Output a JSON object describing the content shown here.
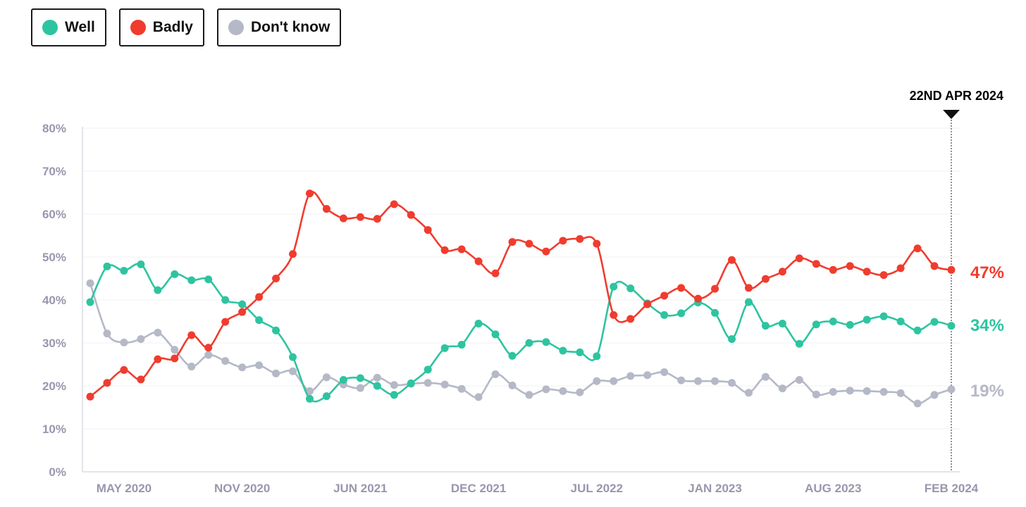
{
  "legend": [
    {
      "name": "Well",
      "color": "#2ec4a0"
    },
    {
      "name": "Badly",
      "color": "#f03c2e"
    },
    {
      "name": "Don't know",
      "color": "#b5b8c6"
    }
  ],
  "chart_data": {
    "type": "line",
    "title": "",
    "xlabel": "",
    "ylabel": "",
    "ylim": [
      0,
      80
    ],
    "y_ticks": [
      "0%",
      "10%",
      "20%",
      "30%",
      "40%",
      "50%",
      "60%",
      "70%",
      "80%"
    ],
    "x_tick_labels": [
      {
        "label": "MAY 2020",
        "index": 2
      },
      {
        "label": "NOV 2020",
        "index": 9
      },
      {
        "label": "JUN 2021",
        "index": 16
      },
      {
        "label": "DEC 2021",
        "index": 23
      },
      {
        "label": "JUL 2022",
        "index": 30
      },
      {
        "label": "JAN 2023",
        "index": 37
      },
      {
        "label": "AUG 2023",
        "index": 44
      },
      {
        "label": "FEB 2024",
        "index": 51
      }
    ],
    "marker": {
      "label": "22ND APR 2024",
      "index": 51
    },
    "end_labels": {
      "Well": "34%",
      "Badly": "47%",
      "Don't know": "19%"
    },
    "x_count": 52,
    "series": [
      {
        "name": "Well",
        "color": "#2ec4a0",
        "values": [
          39.5,
          47.8,
          46.8,
          48.3,
          42.3,
          46.0,
          44.6,
          44.8,
          40.0,
          39.0,
          35.3,
          32.9,
          26.7,
          17.0,
          17.6,
          21.4,
          21.8,
          20.0,
          17.9,
          20.6,
          23.8,
          28.8,
          29.6,
          34.5,
          32.0,
          27.0,
          30.0,
          30.2,
          28.2,
          27.8,
          26.9,
          43.1,
          42.7,
          39.2,
          36.5,
          36.9,
          39.4,
          37.0,
          30.9,
          39.5,
          34.0,
          34.5,
          29.8,
          34.3,
          35.0,
          34.2,
          35.4,
          36.2,
          35.0,
          32.9,
          34.9,
          34.0
        ]
      },
      {
        "name": "Badly",
        "color": "#f03c2e",
        "values": [
          17.5,
          20.7,
          23.7,
          21.5,
          26.2,
          26.4,
          31.8,
          28.9,
          34.9,
          37.2,
          40.7,
          45.0,
          50.7,
          64.8,
          61.2,
          59.0,
          59.3,
          58.9,
          62.3,
          59.8,
          56.3,
          51.6,
          51.8,
          49.0,
          46.2,
          53.5,
          53.1,
          51.3,
          53.8,
          54.2,
          53.1,
          36.5,
          35.6,
          39.0,
          41.0,
          42.8,
          40.3,
          42.6,
          49.3,
          42.8,
          44.9,
          46.6,
          49.7,
          48.4,
          47.0,
          47.9,
          46.6,
          45.8,
          47.4,
          52.0,
          47.9,
          47.0
        ]
      },
      {
        "name": "Don't know",
        "color": "#b5b8c6",
        "values": [
          43.9,
          32.2,
          30.1,
          30.9,
          32.4,
          28.4,
          24.5,
          27.2,
          25.8,
          24.3,
          24.8,
          22.9,
          23.4,
          18.8,
          22.0,
          20.3,
          19.5,
          21.9,
          20.2,
          20.5,
          20.7,
          20.3,
          19.3,
          17.4,
          22.7,
          20.1,
          17.9,
          19.2,
          18.8,
          18.5,
          21.1,
          21.1,
          22.3,
          22.5,
          23.2,
          21.3,
          21.1,
          21.1,
          20.7,
          18.4,
          22.1,
          19.4,
          21.4,
          18.0,
          18.6,
          18.9,
          18.8,
          18.6,
          18.3,
          15.9,
          17.9,
          19.2
        ]
      }
    ]
  }
}
